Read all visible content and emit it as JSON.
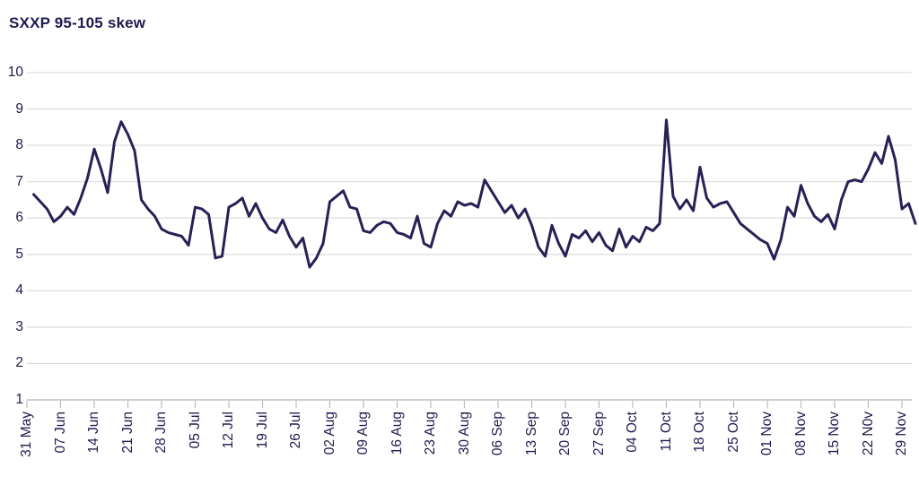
{
  "title": "SXXP 95-105 skew",
  "chart_data": {
    "type": "line",
    "title": "SXXP 95-105 skew",
    "series_name": "SXXP 95-105 skew",
    "grid": true,
    "legend": false,
    "ylim": [
      1,
      10
    ],
    "y_ticks": [
      10,
      9,
      8,
      7,
      6,
      5,
      4,
      3,
      2,
      1
    ],
    "x_tick_labels": [
      "31 May",
      "07 Jun",
      "14 Jun",
      "21 Jun",
      "28 Jun",
      "05 Jul",
      "12 Jul",
      "19 Jul",
      "26 Jul",
      "02 Aug",
      "09 Aug",
      "16 Aug",
      "23 Aug",
      "30 Aug",
      "06 Sep",
      "13 Sep",
      "20 Sep",
      "27 Sep",
      "04 Oct",
      "11 Oct",
      "18 Oct",
      "25 Oct",
      "01 Nov",
      "08 Nov",
      "15 Nov",
      "22 N0v",
      "29 Nov"
    ],
    "values": [
      6.65,
      6.45,
      6.25,
      5.9,
      6.05,
      6.3,
      6.1,
      6.55,
      7.1,
      7.9,
      7.35,
      6.7,
      8.1,
      8.65,
      8.3,
      7.85,
      6.5,
      6.25,
      6.05,
      5.7,
      5.6,
      5.55,
      5.5,
      5.25,
      6.3,
      6.25,
      6.1,
      4.9,
      4.95,
      6.3,
      6.4,
      6.55,
      6.05,
      6.4,
      6.0,
      5.7,
      5.6,
      5.95,
      5.5,
      5.2,
      5.45,
      4.65,
      4.9,
      5.3,
      6.45,
      6.6,
      6.75,
      6.3,
      6.25,
      5.65,
      5.6,
      5.8,
      5.9,
      5.85,
      5.6,
      5.55,
      5.45,
      6.05,
      5.3,
      5.2,
      5.85,
      6.2,
      6.05,
      6.45,
      6.35,
      6.4,
      6.3,
      7.05,
      6.75,
      6.45,
      6.15,
      6.35,
      6.0,
      6.25,
      5.8,
      5.2,
      4.95,
      5.8,
      5.3,
      4.95,
      5.55,
      5.45,
      5.65,
      5.35,
      5.6,
      5.25,
      5.1,
      5.7,
      5.2,
      5.5,
      5.35,
      5.75,
      5.65,
      5.85,
      8.7,
      6.6,
      6.25,
      6.5,
      6.2,
      7.4,
      6.55,
      6.3,
      6.4,
      6.45,
      6.15,
      5.85,
      5.7,
      5.55,
      5.4,
      5.3,
      4.87,
      5.4,
      6.3,
      6.05,
      6.9,
      6.4,
      6.05,
      5.9,
      6.1,
      5.7,
      6.5,
      7.0,
      7.05,
      7.0,
      7.35,
      7.8,
      7.5,
      8.25,
      7.6,
      6.25,
      6.4,
      5.85
    ],
    "line_color": "#282156",
    "grid_color": "#d9d9d9",
    "axis_color": "#bdbdbd",
    "text_color": "#1f1b4f"
  }
}
